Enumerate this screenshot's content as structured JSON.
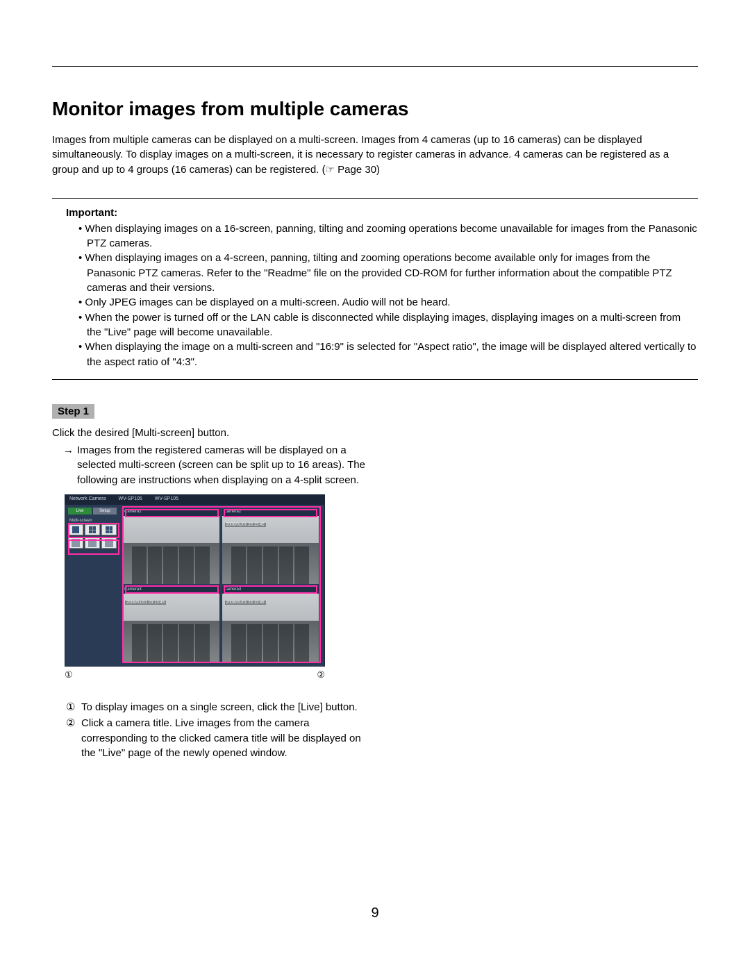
{
  "header_spacer": "",
  "title": "Monitor images from multiple cameras",
  "intro": "Images from multiple cameras can be displayed on a multi-screen. Images from 4 cameras (up to 16 cameras) can be displayed simultaneously. To display images on a multi-screen, it is necessary to register cameras in advance. 4 cameras can be registered as a group and up to 4 groups (16 cameras) can be registered. (☞ Page 30)",
  "important": {
    "label": "Important:",
    "items": [
      "When displaying images on a 16-screen, panning, tilting and zooming operations become unavailable for images from the Panasonic PTZ cameras.",
      "When displaying images on a 4-screen, panning, tilting and zooming operations become available only for images from the Panasonic PTZ cameras. Refer to the \"Readme\" file on the provided CD-ROM for further information about the compatible PTZ cameras and their versions.",
      "Only JPEG images can be displayed on a multi-screen. Audio will not be heard.",
      "When the power is turned off or the LAN cable is disconnected while displaying images, displaying images on a multi-screen from the \"Live\" page will become unavailable.",
      "When displaying the image on a multi-screen and \"16:9\" is selected for \"Aspect ratio\", the image will be displayed altered vertically to the aspect ratio of \"4:3\"."
    ]
  },
  "step": {
    "badge": "Step 1",
    "line1": "Click the desired [Multi-screen] button.",
    "arrow": "→",
    "line2": "Images from the registered cameras will be displayed on a selected multi-screen (screen can be split up to 16 areas). The following are instructions when displaying on a 4-split screen."
  },
  "screenshot": {
    "header_left": "Network Camera",
    "model": "WV-SP105",
    "model2": "WV-SP105",
    "tab_live": "Live",
    "tab_setup": "Setup",
    "multiscreen_label": "Multi-screen",
    "cams": [
      {
        "title": "Camera1",
        "timestamp": ""
      },
      {
        "title": "Camera2",
        "timestamp": "2008/01/01 23:13:45"
      },
      {
        "title": "Camera3",
        "timestamp": "2008/01/01 23:13:45"
      },
      {
        "title": "Camera4",
        "timestamp": "2008/01/01 23:13:45"
      }
    ],
    "overlay_color": "#ff2ea6",
    "bg_color": "#2a3b55"
  },
  "callouts": {
    "left": "①",
    "right": "②"
  },
  "notes": [
    {
      "n": "①",
      "text": "To display images on a single screen, click the [Live] button."
    },
    {
      "n": "②",
      "text": "Click a camera title. Live images from the camera corresponding to the clicked camera title will be displayed on the \"Live\" page of the newly opened window."
    }
  ],
  "page_number": "9"
}
